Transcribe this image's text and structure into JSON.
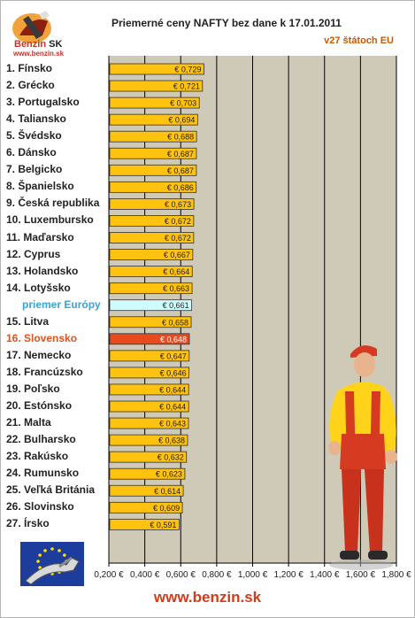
{
  "brand": {
    "logo_text": "Benzin",
    "logo_sk": "SK",
    "url_small": "www.benzin.sk",
    "footer": "www.benzin.sk"
  },
  "colors": {
    "bar": "#ffc20e",
    "bar_avg": "#cffcfc",
    "bar_highlight": "#e84a1e",
    "plot_bg": "#cfc9b8",
    "text_avg": "#3ba3d8",
    "text_highlight": "#e0531c",
    "brand": "#d43a1a"
  },
  "chart_data": {
    "type": "bar",
    "orientation": "horizontal",
    "title": "Priemerné ceny NAFTY bez dane k 17.01.2011",
    "subtitle": "v27 štátoch EU",
    "xlim": [
      0.2,
      1.8
    ],
    "x_ticks": [
      "0,200 €",
      "0,400 €",
      "0,600 €",
      "0,800 €",
      "1,000 €",
      "1,200 €",
      "1,400 €",
      "1,600 €",
      "1,800 €"
    ],
    "grid": true,
    "categories": [
      "1. Fínsko",
      "2. Grécko",
      "3. Portugalsko",
      "4. Taliansko",
      "5. Švédsko",
      "6. Dánsko",
      "7. Belgicko",
      "8. Španielsko",
      "9. Česká republika",
      "10. Luxembursko",
      "11. Maďarsko",
      "12. Cyprus",
      "13. Holandsko",
      "14. Lotyšsko",
      "priemer Európy",
      "15. Litva",
      "16. Slovensko",
      "17. Nemecko",
      "18. Francúzsko",
      "19. Poľsko",
      "20. Estónsko",
      "21. Malta",
      "22. Bulharsko",
      "23. Rakúsko",
      "24. Rumunsko",
      "25. Veľká Británia",
      "26. Slovinsko",
      "27. Írsko"
    ],
    "values": [
      0.729,
      0.721,
      0.703,
      0.694,
      0.688,
      0.687,
      0.687,
      0.686,
      0.673,
      0.672,
      0.672,
      0.667,
      0.664,
      0.663,
      0.661,
      0.658,
      0.648,
      0.647,
      0.646,
      0.644,
      0.644,
      0.643,
      0.638,
      0.632,
      0.623,
      0.614,
      0.609,
      0.591
    ],
    "value_labels": [
      "€ 0,729",
      "€ 0,721",
      "€ 0,703",
      "€ 0,694",
      "€ 0,688",
      "€ 0,687",
      "€ 0,687",
      "€ 0,686",
      "€ 0,673",
      "€ 0,672",
      "€ 0,672",
      "€ 0,667",
      "€ 0,664",
      "€ 0,663",
      "€ 0,661",
      "€ 0,658",
      "€ 0,648",
      "€ 0,647",
      "€ 0,646",
      "€ 0,644",
      "€ 0,644",
      "€ 0,643",
      "€ 0,638",
      "€ 0,632",
      "€ 0,623",
      "€ 0,614",
      "€ 0,609",
      "€ 0,591"
    ],
    "highlight": {
      "average_index": 14,
      "country_index": 16
    }
  }
}
